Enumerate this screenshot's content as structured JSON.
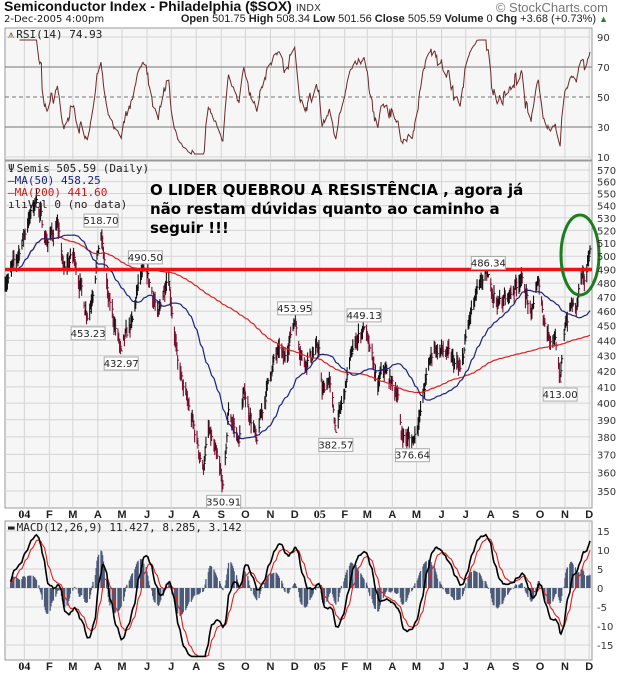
{
  "header": {
    "title": "Semiconductor Index - Philadelphia ($SOX)",
    "exchange": "INDX",
    "brand": "© StockCharts.com",
    "datetime": "2-Dec-2005 4:00pm",
    "open_label": "Open",
    "open": "501.75",
    "high_label": "High",
    "high": "508.34",
    "low_label": "Low",
    "low": "501.56",
    "close_label": "Close",
    "close": "505.59",
    "volume_label": "Volume",
    "volume": "0",
    "chg_label": "Chg",
    "chg": "+3.68 (+0.73%)",
    "chg_icon": "up-triangle-icon"
  },
  "chart_data": [
    {
      "type": "line",
      "panel": "rsi",
      "legend": "RSI(14) 74.93",
      "yticks": [
        10,
        30,
        50,
        70,
        90
      ],
      "ylim": [
        10,
        90
      ],
      "reference_lines": [
        30,
        50,
        70
      ],
      "colors": {
        "line": "#6b2a2a"
      }
    },
    {
      "type": "bar",
      "subtype": "ohlc-daily",
      "panel": "price",
      "legend": [
        "Semis 505.59 (Daily)",
        "MA(50) 458.25",
        "MA(200) 441.60",
        "Vol 0 (no data)"
      ],
      "yscale": "log",
      "ylim": [
        340,
        575
      ],
      "yticks": [
        350,
        360,
        370,
        380,
        390,
        400,
        410,
        420,
        430,
        440,
        450,
        460,
        470,
        480,
        490,
        500,
        510,
        520,
        530,
        540,
        550,
        560,
        570
      ],
      "grid": true,
      "colors": {
        "up": "#111111",
        "down": "#7a1030",
        "ma50": "#1a237e",
        "ma200": "#e02020",
        "resistance": "#ee1111",
        "circle": "#1e7d1e"
      },
      "key_closes": [
        [
          "2003-12-10",
          480
        ],
        [
          "2003-12-24",
          500
        ],
        [
          "2004-01-07",
          530
        ],
        [
          "2004-01-16",
          545
        ],
        [
          "2004-01-29",
          510
        ],
        [
          "2004-02-11",
          525
        ],
        [
          "2004-02-19",
          490
        ],
        [
          "2004-03-02",
          501
        ],
        [
          "2004-03-20",
          453.23
        ],
        [
          "2004-04-05",
          518.7
        ],
        [
          "2004-04-14",
          470
        ],
        [
          "2004-04-30",
          432.97
        ],
        [
          "2004-05-15",
          455
        ],
        [
          "2004-05-21",
          480
        ],
        [
          "2004-05-30",
          490.5
        ],
        [
          "2004-06-15",
          458
        ],
        [
          "2004-06-27",
          488
        ],
        [
          "2004-07-09",
          427
        ],
        [
          "2004-07-16",
          410
        ],
        [
          "2004-08-10",
          362
        ],
        [
          "2004-08-16",
          385
        ],
        [
          "2004-09-04",
          350.91
        ],
        [
          "2004-09-10",
          396
        ],
        [
          "2004-09-23",
          377
        ],
        [
          "2004-09-29",
          408
        ],
        [
          "2004-10-15",
          378
        ],
        [
          "2004-10-30",
          416
        ],
        [
          "2004-11-12",
          435
        ],
        [
          "2004-11-18",
          428
        ],
        [
          "2004-12-01",
          453.95
        ],
        [
          "2004-12-12",
          425
        ],
        [
          "2004-12-31",
          435
        ],
        [
          "2005-01-04",
          407
        ],
        [
          "2005-01-13",
          415
        ],
        [
          "2005-01-21",
          382.57
        ],
        [
          "2005-02-01",
          407
        ],
        [
          "2005-02-07",
          427
        ],
        [
          "2005-02-13",
          438
        ],
        [
          "2005-02-25",
          449.13
        ],
        [
          "2005-03-04",
          435
        ],
        [
          "2005-03-14",
          410
        ],
        [
          "2005-03-20",
          422
        ],
        [
          "2005-04-08",
          405
        ],
        [
          "2005-04-12",
          382
        ],
        [
          "2005-04-26",
          376.64
        ],
        [
          "2005-05-06",
          395
        ],
        [
          "2005-05-15",
          422
        ],
        [
          "2005-05-23",
          435
        ],
        [
          "2005-06-05",
          432
        ],
        [
          "2005-06-25",
          420
        ],
        [
          "2005-07-03",
          448
        ],
        [
          "2005-07-12",
          468
        ],
        [
          "2005-07-19",
          480
        ],
        [
          "2005-07-29",
          486.34
        ],
        [
          "2005-08-09",
          465
        ],
        [
          "2005-08-22",
          470
        ],
        [
          "2005-09-08",
          485
        ],
        [
          "2005-09-20",
          458
        ],
        [
          "2005-09-29",
          482
        ],
        [
          "2005-10-09",
          445
        ],
        [
          "2005-10-20",
          442
        ],
        [
          "2005-10-26",
          413.0
        ],
        [
          "2005-11-01",
          450
        ],
        [
          "2005-11-09",
          465
        ],
        [
          "2005-11-15",
          462
        ],
        [
          "2005-11-21",
          485
        ],
        [
          "2005-11-26",
          480
        ],
        [
          "2005-12-02",
          505.59
        ]
      ],
      "price_labels": [
        {
          "date": "2004-04-05",
          "text": "518.70",
          "position": "above"
        },
        {
          "date": "2004-03-20",
          "text": "453.23",
          "position": "below"
        },
        {
          "date": "2004-04-30",
          "text": "432.97",
          "position": "below"
        },
        {
          "date": "2004-05-30",
          "text": "490.50",
          "position": "above"
        },
        {
          "date": "2004-09-04",
          "text": "350.91",
          "position": "below"
        },
        {
          "date": "2004-12-01",
          "text": "453.95",
          "position": "above"
        },
        {
          "date": "2005-01-21",
          "text": "382.57",
          "position": "below"
        },
        {
          "date": "2005-02-25",
          "text": "449.13",
          "position": "above"
        },
        {
          "date": "2005-04-26",
          "text": "376.64",
          "position": "below"
        },
        {
          "date": "2005-07-29",
          "text": "486.34",
          "position": "above"
        },
        {
          "date": "2005-10-26",
          "text": "413.00",
          "position": "below"
        }
      ],
      "resistance_level": 490,
      "annotation": [
        "O LIDER QUEBROU A RESISTÊNCIA , agora já",
        "não restam dúvidas quanto ao caminho a",
        "seguir !!!"
      ]
    },
    {
      "type": "line",
      "panel": "macd",
      "legend": "MACD(12,26,9) 11.427, 8.285, 3.142",
      "yticks": [
        -15,
        -10,
        -5,
        0,
        5,
        10,
        15
      ],
      "ylim": [
        -19,
        19
      ],
      "colors": {
        "macd": "#000000",
        "signal": "#e02020",
        "histogram": "#4a5a78"
      }
    }
  ],
  "x_axis": {
    "start": "2003-12-08",
    "end": "2005-12-02",
    "month_labels": [
      "04",
      "F",
      "M",
      "A",
      "M",
      "J",
      "J",
      "A",
      "S",
      "O",
      "N",
      "D",
      "05",
      "F",
      "M",
      "A",
      "M",
      "J",
      "J",
      "A",
      "S",
      "O",
      "N",
      "D"
    ],
    "year_labels": [
      "04",
      "05"
    ]
  }
}
